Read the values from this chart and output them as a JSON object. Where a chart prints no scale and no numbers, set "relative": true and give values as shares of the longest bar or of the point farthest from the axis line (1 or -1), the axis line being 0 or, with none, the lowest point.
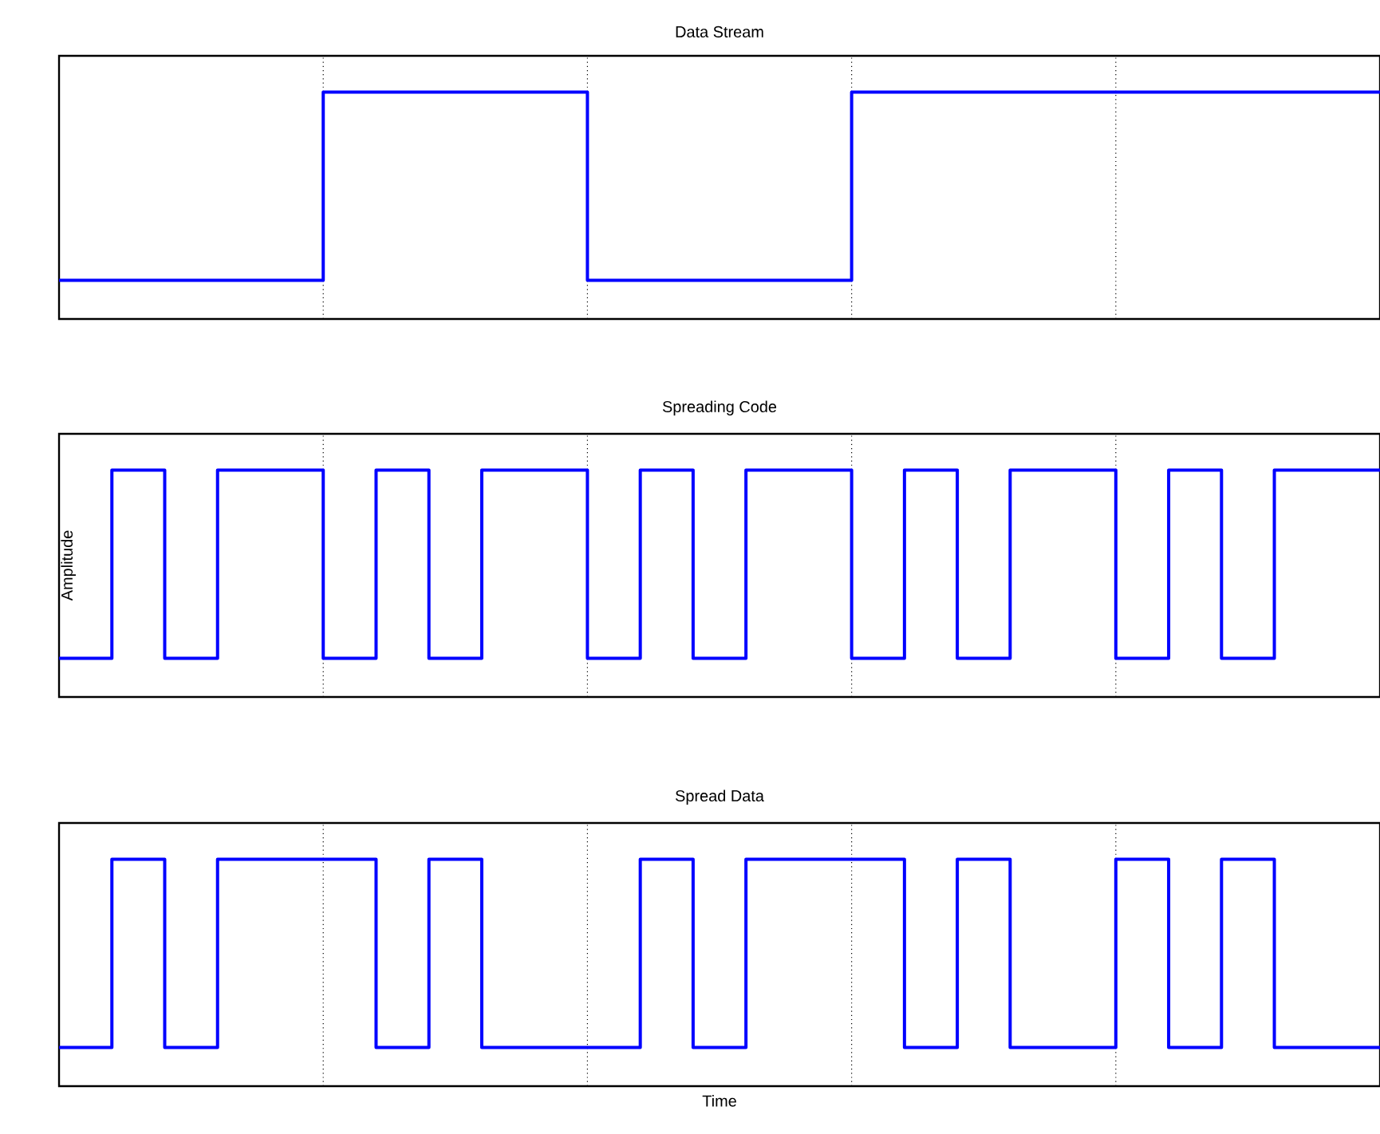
{
  "chart_data": [
    {
      "type": "step",
      "title": "Data Stream",
      "categories": [
        null,
        null,
        null,
        null,
        null,
        null
      ],
      "values": [
        0.17,
        1,
        0.17,
        1,
        1,
        1
      ],
      "color": "#0000ff",
      "relative": true,
      "grid": "x"
    },
    {
      "type": "step",
      "title": "Spreading Code",
      "ylabel": "Amplitude",
      "categories": [
        null,
        null,
        null,
        null,
        null,
        null,
        null,
        null,
        null,
        null,
        null,
        null,
        null,
        null,
        null,
        null,
        null,
        null,
        null,
        null,
        null,
        null,
        null,
        null,
        null,
        null
      ],
      "values": [
        0.17,
        1,
        0.17,
        1,
        1,
        0.17,
        1,
        0.17,
        1,
        1,
        0.17,
        1,
        0.17,
        1,
        1,
        0.17,
        1,
        0.17,
        1,
        1,
        0.17,
        1,
        0.17,
        1,
        1,
        1
      ],
      "color": "#0000ff",
      "relative": true,
      "grid": "x"
    },
    {
      "type": "step",
      "title": "Spread Data",
      "xlabel": "Time",
      "categories": [
        null,
        null,
        null,
        null,
        null,
        null,
        null,
        null,
        null,
        null,
        null,
        null,
        null,
        null,
        null,
        null,
        null,
        null,
        null,
        null,
        null,
        null,
        null,
        null,
        null,
        null
      ],
      "values": [
        0.17,
        1,
        0.17,
        1,
        1,
        1,
        0.17,
        1,
        0.17,
        0.17,
        0.17,
        1,
        0.17,
        1,
        1,
        1,
        0.17,
        1,
        0.17,
        0.17,
        1,
        0.17,
        1,
        0.17,
        0.17,
        0.17
      ],
      "color": "#0000ff",
      "relative": true,
      "grid": "x"
    }
  ]
}
